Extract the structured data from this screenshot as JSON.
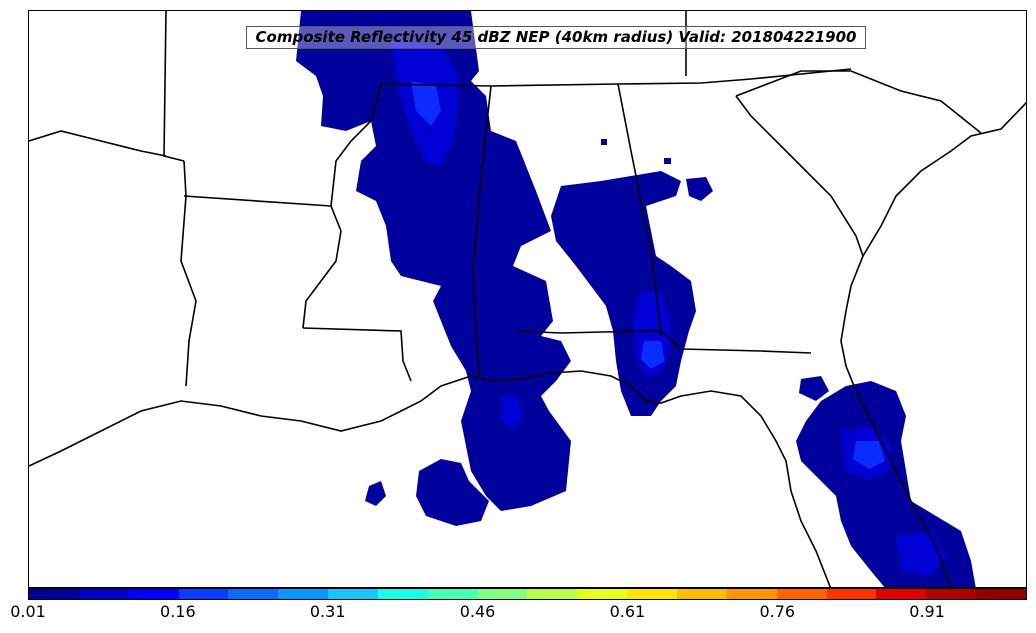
{
  "map": {
    "title": "Composite Reflectivity 45 dBZ NEP (40km radius) Valid: 201804221900",
    "fill_colors": {
      "level1": "#00009c",
      "level2": "#0000d4",
      "level3": "#0a2cff",
      "outline": "#000000"
    }
  },
  "colorbar": {
    "colors": [
      "#00009a",
      "#0000c8",
      "#0000ff",
      "#0a3cff",
      "#0a6cff",
      "#0a98ff",
      "#14c8ff",
      "#18ffe6",
      "#48ffb8",
      "#82ff82",
      "#b8ff4a",
      "#e8ff18",
      "#ffe600",
      "#ffbe00",
      "#ff9600",
      "#ff6400",
      "#ff3200",
      "#e00000",
      "#b00000",
      "#900000"
    ],
    "ticks": [
      "0.01",
      "0.16",
      "0.31",
      "0.46",
      "0.61",
      "0.76",
      "0.91"
    ]
  }
}
